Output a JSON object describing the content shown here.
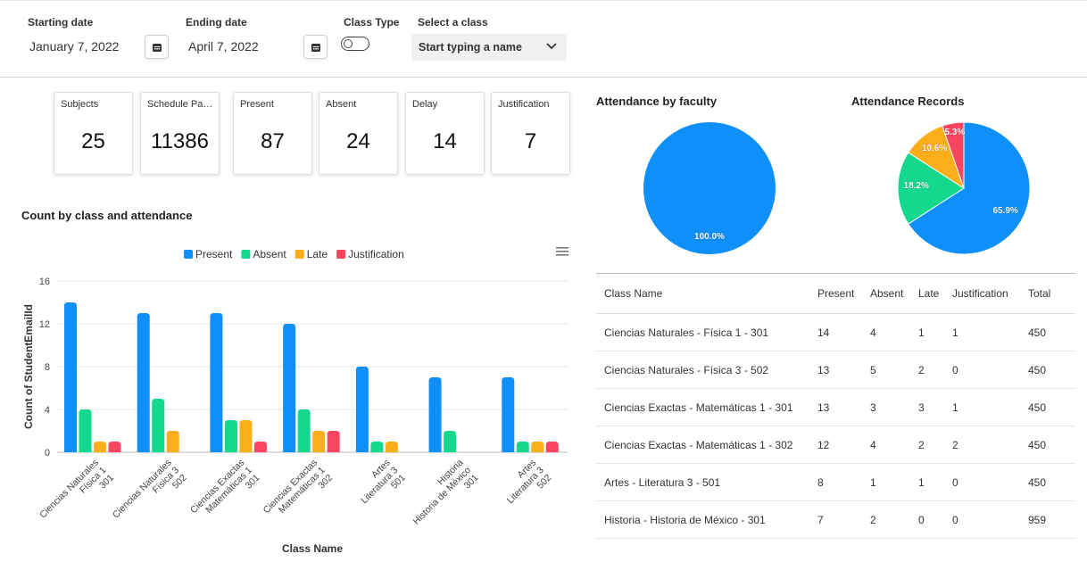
{
  "filters": {
    "start_label": "Starting date",
    "start_value": "January 7, 2022",
    "end_label": "Ending date",
    "end_value": "April 7, 2022",
    "class_type_label": "Class Type",
    "select_label": "Select a class",
    "select_placeholder": "Start typing a name"
  },
  "cards": [
    {
      "title": "Subjects",
      "value": "25"
    },
    {
      "title": "Schedule Passed",
      "value": "11386"
    },
    {
      "title": "Present",
      "value": "87"
    },
    {
      "title": "Absent",
      "value": "24"
    },
    {
      "title": "Delay",
      "value": "14"
    },
    {
      "title": "Justification",
      "value": "7"
    }
  ],
  "bar_title": "Count by class and attendance",
  "pie_faculty_title": "Attendance by faculty",
  "pie_records_title": "Attendance Records",
  "colors": {
    "present": "#0F8FFA",
    "absent": "#14D88E",
    "late": "#FBAE1A",
    "justification": "#FA4561"
  },
  "chart_data": [
    {
      "type": "bar",
      "title": "Count by class and attendance",
      "xlabel": "Class Name",
      "ylabel": "Count of StudentEmailId",
      "ylim": [
        0,
        16
      ],
      "yticks": [
        0,
        4,
        8,
        12,
        16
      ],
      "legend_position": "top",
      "grid": true,
      "categories": [
        [
          "Ciencias Naturales",
          "Física 1",
          "301"
        ],
        [
          "Ciencias Naturales",
          "Física 3",
          "502"
        ],
        [
          "Ciencias Exactas",
          "Matemáticas 1",
          "301"
        ],
        [
          "Ciencias Exactas",
          "Matemáticas 1",
          "302"
        ],
        [
          "Artes",
          "Literatura 3",
          "501"
        ],
        [
          "Historia",
          "Historia de México",
          "301"
        ],
        [
          "Artes",
          "Literatura 3",
          "502"
        ]
      ],
      "series": [
        {
          "name": "Present",
          "color": "#0F8FFA",
          "values": [
            14,
            13,
            13,
            12,
            8,
            7,
            7
          ]
        },
        {
          "name": "Absent",
          "color": "#14D88E",
          "values": [
            4,
            5,
            3,
            4,
            1,
            2,
            1
          ]
        },
        {
          "name": "Late",
          "color": "#FBAE1A",
          "values": [
            1,
            2,
            3,
            2,
            1,
            0,
            1
          ]
        },
        {
          "name": "Justification",
          "color": "#FA4561",
          "values": [
            1,
            0,
            1,
            2,
            0,
            0,
            1
          ]
        }
      ]
    },
    {
      "type": "pie",
      "title": "Attendance by faculty",
      "slices": [
        {
          "label": "100.0%",
          "value": 100.0,
          "color": "#0F8FFA"
        }
      ]
    },
    {
      "type": "pie",
      "title": "Attendance Records",
      "slices": [
        {
          "label": "65.9%",
          "value": 65.9,
          "color": "#0F8FFA"
        },
        {
          "label": "18.2%",
          "value": 18.2,
          "color": "#14D88E"
        },
        {
          "label": "10.6%",
          "value": 10.6,
          "color": "#FBAE1A"
        },
        {
          "label": "5.3%",
          "value": 5.3,
          "color": "#FA4561"
        }
      ]
    }
  ],
  "table": {
    "headers": [
      "Class Name",
      "Present",
      "Absent",
      "Late",
      "Justification",
      "Total"
    ],
    "rows": [
      [
        "Ciencias Naturales - Física 1 - 301",
        "14",
        "4",
        "1",
        "1",
        "450"
      ],
      [
        "Ciencias Naturales - Física 3 - 502",
        "13",
        "5",
        "2",
        "0",
        "450"
      ],
      [
        "Ciencias Exactas - Matemáticas 1 - 301",
        "13",
        "3",
        "3",
        "1",
        "450"
      ],
      [
        "Ciencias Exactas - Matemáticas 1 - 302",
        "12",
        "4",
        "2",
        "2",
        "450"
      ],
      [
        "Artes - Literatura 3 - 501",
        "8",
        "1",
        "1",
        "0",
        "450"
      ],
      [
        "Historia - Historia de México - 301",
        "7",
        "2",
        "0",
        "0",
        "959"
      ]
    ]
  },
  "icons": {
    "calendar": "calendar-icon",
    "chevron": "chevron-down-icon",
    "menu": "hamburger-menu-icon"
  }
}
